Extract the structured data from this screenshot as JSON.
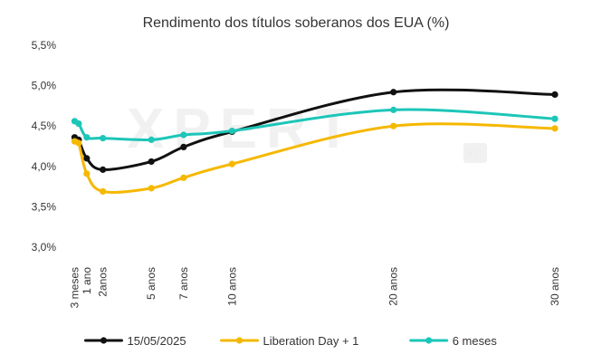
{
  "chart_data": {
    "type": "line",
    "title": "Rendimento dos títulos soberanos dos EUA (%)",
    "watermark": "XPERT",
    "watermark_badge": "XP",
    "x": [
      0.25,
      0.5,
      1,
      2,
      5,
      7,
      10,
      20,
      30
    ],
    "x_tick_labels": [
      {
        "x": 0.25,
        "label": "3 meses"
      },
      {
        "x": 1,
        "label": "1 ano"
      },
      {
        "x": 2,
        "label": "2anos"
      },
      {
        "x": 5,
        "label": "5 anos"
      },
      {
        "x": 7,
        "label": "7 anos"
      },
      {
        "x": 10,
        "label": "10 anos"
      },
      {
        "x": 20,
        "label": "20 anos"
      },
      {
        "x": 30,
        "label": "30 anos"
      }
    ],
    "xlim": [
      0,
      30
    ],
    "ylim": [
      3.0,
      5.5
    ],
    "y_ticks": [
      3.0,
      3.5,
      4.0,
      4.5,
      5.0,
      5.5
    ],
    "y_tick_labels": [
      "3,0%",
      "3,5%",
      "4,0%",
      "4,5%",
      "5,0%",
      "5,5%"
    ],
    "grid": false,
    "legend_position": "bottom",
    "series": [
      {
        "name": "15/05/2025",
        "color": "#111111",
        "points": [
          {
            "x": 0.25,
            "y": 4.36
          },
          {
            "x": 0.5,
            "y": 4.33
          },
          {
            "x": 1,
            "y": 4.1
          },
          {
            "x": 2,
            "y": 3.96
          },
          {
            "x": 5,
            "y": 4.06
          },
          {
            "x": 7,
            "y": 4.24
          },
          {
            "x": 10,
            "y": 4.43
          },
          {
            "x": 20,
            "y": 4.92
          },
          {
            "x": 30,
            "y": 4.89
          }
        ]
      },
      {
        "name": "Liberation Day + 1",
        "color": "#f5b800",
        "points": [
          {
            "x": 0.25,
            "y": 4.31
          },
          {
            "x": 0.5,
            "y": 4.29
          },
          {
            "x": 1,
            "y": 3.91
          },
          {
            "x": 2,
            "y": 3.69
          },
          {
            "x": 5,
            "y": 3.73
          },
          {
            "x": 7,
            "y": 3.86
          },
          {
            "x": 10,
            "y": 4.03
          },
          {
            "x": 20,
            "y": 4.5
          },
          {
            "x": 30,
            "y": 4.47
          }
        ]
      },
      {
        "name": "6 meses",
        "color": "#1cc6b8",
        "points": [
          {
            "x": 0.25,
            "y": 4.56
          },
          {
            "x": 0.5,
            "y": 4.53
          },
          {
            "x": 1,
            "y": 4.36
          },
          {
            "x": 2,
            "y": 4.35
          },
          {
            "x": 5,
            "y": 4.33
          },
          {
            "x": 7,
            "y": 4.39
          },
          {
            "x": 10,
            "y": 4.44
          },
          {
            "x": 20,
            "y": 4.7
          },
          {
            "x": 30,
            "y": 4.59
          }
        ]
      }
    ]
  }
}
